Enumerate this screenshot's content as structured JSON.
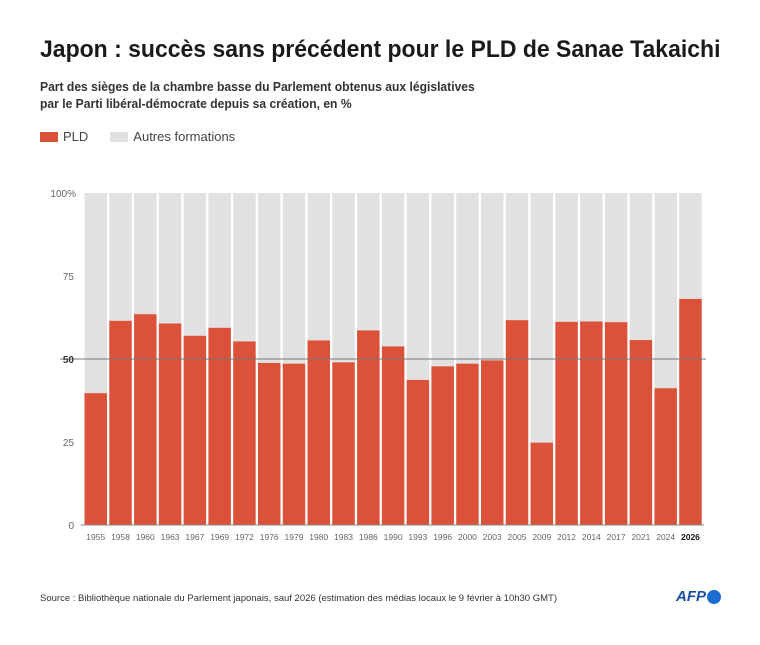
{
  "title": "Japon : succès sans précédent pour le PLD de Sanae Takaichi",
  "subtitle_line1": "Part des sièges de la chambre basse du Parlement obtenus aux législatives",
  "subtitle_line2": "par le Parti libéral-démocrate depuis sa création, en %",
  "source": "Source : Bibliothèque nationale du Parlement japonais, sauf 2026 (estimation des médias locaux le 9 février à 10h30 GMT)",
  "logo": "AFP",
  "colors": {
    "pld": "#db5139",
    "others": "#e1e1e1",
    "reference_line": "#777777"
  },
  "chart_data": {
    "type": "bar",
    "stacked": true,
    "categories": [
      "1955",
      "1958",
      "1960",
      "1963",
      "1967",
      "1969",
      "1972",
      "1976",
      "1979",
      "1980",
      "1983",
      "1986",
      "1990",
      "1993",
      "1996",
      "2000",
      "2003",
      "2005",
      "2009",
      "2012",
      "2014",
      "2017",
      "2021",
      "2024",
      "2026"
    ],
    "highlighted_category": "2026",
    "series": [
      {
        "name": "PLD",
        "color": "#db5139",
        "values": [
          39.7,
          61.5,
          63.5,
          60.7,
          57.0,
          59.4,
          55.3,
          48.8,
          48.6,
          55.6,
          49.0,
          58.6,
          53.8,
          43.7,
          47.8,
          48.6,
          49.6,
          61.7,
          24.8,
          61.2,
          61.3,
          61.1,
          55.7,
          41.2,
          68.1
        ]
      },
      {
        "name": "Autres formations",
        "color": "#e1e1e1",
        "values": "remainder to 100"
      }
    ],
    "ylim": [
      0,
      100
    ],
    "yticks": [
      0,
      25,
      50,
      75,
      100
    ],
    "ytick_labels": [
      "0",
      "25",
      "50",
      "75",
      "100%"
    ],
    "reference_line": 50,
    "legend": "top-left",
    "grid": false
  }
}
